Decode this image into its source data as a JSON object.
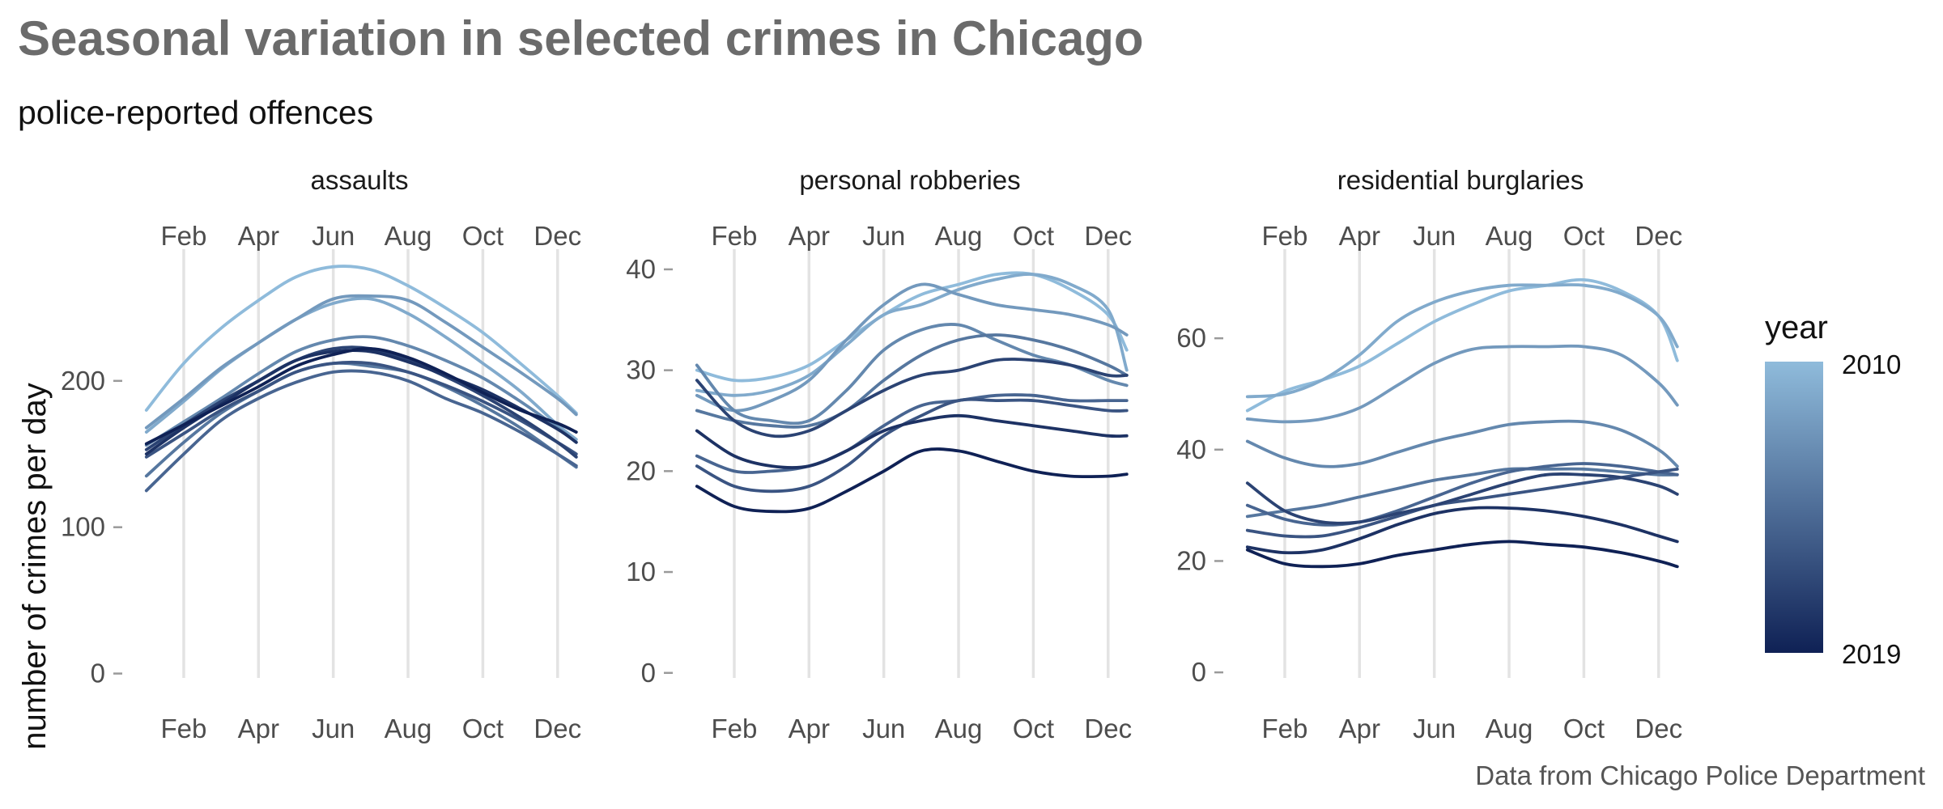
{
  "chart_data": {
    "type": "line",
    "title": "Seasonal variation in selected crimes in Chicago",
    "subtitle": "police-reported offences",
    "ylabel": "number of crimes per day",
    "caption": "Data from Chicago Police Department",
    "x_ticks": [
      {
        "month": 2,
        "label": "Feb"
      },
      {
        "month": 4,
        "label": "Apr"
      },
      {
        "month": 6,
        "label": "Jun"
      },
      {
        "month": 8,
        "label": "Aug"
      },
      {
        "month": 10,
        "label": "Oct"
      },
      {
        "month": 12,
        "label": "Dec"
      }
    ],
    "xlim": [
      0.55,
      12.85
    ],
    "legend": {
      "title": "year",
      "min_label": "2019",
      "max_label": "2010",
      "low_color": "#0f2155",
      "high_color": "#8fbbdb",
      "placement": "right"
    },
    "grid": "vertical major only",
    "x": [
      1.0,
      2.0,
      3.0,
      4.0,
      5.0,
      6.0,
      7.0,
      8.0,
      9.0,
      10.0,
      11.0,
      12.0,
      12.5
    ],
    "facets": [
      {
        "label": "assaults",
        "ylim": [
          -3,
          290
        ],
        "y_ticks": [
          0,
          100,
          200
        ],
        "series": [
          {
            "year": 2010,
            "values": [
              180,
              212,
              236,
              255,
              271,
              278,
              276,
              265,
              250,
              233,
              212,
              190,
              178
            ]
          },
          {
            "year": 2011,
            "values": [
              165,
              186,
              208,
              226,
              242,
              253,
              256,
              246,
              230,
              212,
              193,
              170,
              160
            ]
          },
          {
            "year": 2012,
            "values": [
              168,
              188,
              209,
              226,
              242,
              256,
              258,
              255,
              240,
              223,
              206,
              188,
              177
            ]
          },
          {
            "year": 2013,
            "values": [
              156,
              172,
              188,
              205,
              220,
              228,
              230,
              224,
              214,
              202,
              186,
              168,
              158
            ]
          },
          {
            "year": 2014,
            "values": [
              135,
              158,
              178,
              193,
              206,
              212,
              210,
              206,
              196,
              183,
              168,
              150,
              141
            ]
          },
          {
            "year": 2015,
            "values": [
              125,
              150,
              173,
              188,
              199,
              206,
              206,
              200,
              188,
              178,
              165,
              150,
              142
            ]
          },
          {
            "year": 2016,
            "values": [
              148,
              164,
              180,
              193,
              206,
              212,
              212,
              206,
              197,
              186,
              173,
              158,
              150
            ]
          },
          {
            "year": 2017,
            "values": [
              153,
              170,
              186,
              200,
              214,
              222,
              222,
              214,
              203,
              190,
              175,
              158,
              148
            ]
          },
          {
            "year": 2018,
            "values": [
              150,
              168,
              184,
              200,
              214,
              220,
              220,
              213,
              204,
              194,
              181,
              167,
              158
            ]
          },
          {
            "year": 2019,
            "values": [
              157,
              170,
              183,
              196,
              210,
              218,
              222,
              216,
              205,
              192,
              180,
              171,
              165
            ]
          }
        ]
      },
      {
        "label": "personal robberies",
        "ylim": [
          -0.5,
          42
        ],
        "y_ticks": [
          0,
          10,
          20,
          30,
          40
        ],
        "series": [
          {
            "year": 2010,
            "values": [
              30,
              29,
              29.3,
              30.5,
              33,
              35.5,
              37.5,
              38.5,
              39.5,
              39.5,
              38,
              35.5,
              32
            ]
          },
          {
            "year": 2011,
            "values": [
              28,
              27.5,
              28,
              29.5,
              32.5,
              35.5,
              36.5,
              38,
              39,
              39.5,
              38.5,
              36,
              30
            ]
          },
          {
            "year": 2012,
            "values": [
              27.5,
              26,
              27,
              29,
              33,
              36.5,
              38.5,
              37.5,
              36.5,
              36,
              35.5,
              34.5,
              33.5
            ]
          },
          {
            "year": 2013,
            "values": [
              30.5,
              26,
              25,
              25,
              28,
              32,
              34,
              34.5,
              33,
              31.5,
              30.5,
              29,
              28.5
            ]
          },
          {
            "year": 2014,
            "values": [
              26,
              25,
              24.5,
              24.5,
              26,
              29,
              31.5,
              33,
              33.5,
              33,
              32,
              30.5,
              29.5
            ]
          },
          {
            "year": 2015,
            "values": [
              21.5,
              20,
              20,
              20.5,
              22,
              24.5,
              26.5,
              27,
              27.5,
              27.5,
              27,
              27,
              27
            ]
          },
          {
            "year": 2016,
            "values": [
              20.5,
              18.5,
              18,
              18.5,
              20.5,
              23.5,
              25.5,
              27,
              27,
              27,
              26.5,
              26,
              26
            ]
          },
          {
            "year": 2017,
            "values": [
              29,
              25,
              23.5,
              24,
              26,
              28,
              29.5,
              30,
              31,
              31,
              30.5,
              29.5,
              29.5
            ]
          },
          {
            "year": 2018,
            "values": [
              24,
              21.5,
              20.5,
              20.5,
              22,
              24,
              25,
              25.5,
              25,
              24.5,
              24,
              23.5,
              23.5
            ]
          },
          {
            "year": 2019,
            "values": [
              18.5,
              16.5,
              16,
              16.3,
              18,
              20,
              22,
              22,
              21,
              20,
              19.5,
              19.5,
              19.7
            ]
          }
        ]
      },
      {
        "label": "residential burglaries",
        "ylim": [
          -1,
          76
        ],
        "y_ticks": [
          0,
          20,
          40,
          60
        ],
        "series": [
          {
            "year": 2010,
            "values": [
              47,
              50.5,
              52.5,
              55,
              59,
              63,
              66,
              68.5,
              69.5,
              70.5,
              68.5,
              64,
              56
            ]
          },
          {
            "year": 2011,
            "values": [
              49.5,
              50,
              52.5,
              57,
              63,
              66.5,
              68.5,
              69.5,
              69.5,
              69.5,
              68,
              64,
              58.5
            ]
          },
          {
            "year": 2012,
            "values": [
              45.5,
              45,
              45.5,
              47.5,
              51.5,
              55.5,
              58,
              58.5,
              58.5,
              58.5,
              57,
              52,
              48
            ]
          },
          {
            "year": 2013,
            "values": [
              41.5,
              38.5,
              37,
              37.5,
              39.5,
              41.5,
              43,
              44.5,
              45,
              45,
              43.5,
              40,
              37
            ]
          },
          {
            "year": 2014,
            "values": [
              28,
              29,
              30,
              31.5,
              33,
              34.5,
              35.5,
              36.5,
              36.5,
              36.5,
              36,
              35.5,
              35.5
            ]
          },
          {
            "year": 2015,
            "values": [
              30,
              27.5,
              26.5,
              27,
              29,
              31.5,
              34,
              36,
              37,
              37.5,
              37,
              36,
              35.5
            ]
          },
          {
            "year": 2016,
            "values": [
              25.5,
              24.5,
              24.5,
              26,
              28,
              30,
              31,
              32,
              33,
              34,
              35,
              36,
              36.5
            ]
          },
          {
            "year": 2017,
            "values": [
              34,
              29,
              27,
              27,
              28.5,
              30,
              32,
              34,
              35.5,
              35.5,
              35,
              33.5,
              32
            ]
          },
          {
            "year": 2018,
            "values": [
              22.5,
              21.5,
              22,
              24,
              26.5,
              28.5,
              29.5,
              29.5,
              29,
              28,
              26.5,
              24.5,
              23.5
            ]
          },
          {
            "year": 2019,
            "values": [
              22,
              19.5,
              19,
              19.5,
              21,
              22,
              23,
              23.5,
              23,
              22.5,
              21.5,
              20,
              19
            ]
          }
        ]
      }
    ]
  }
}
